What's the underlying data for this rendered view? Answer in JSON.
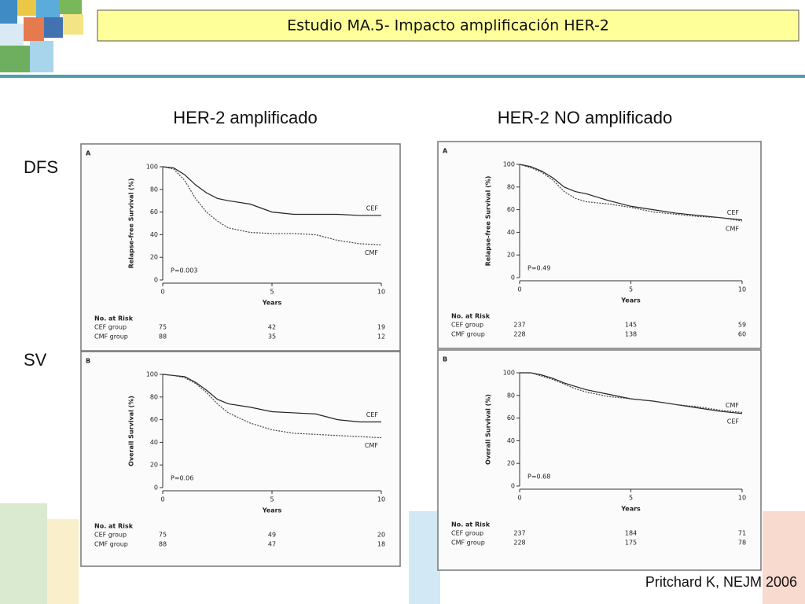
{
  "slide": {
    "title": "Estudio MA.5- Impacto amplificación HER-2",
    "columns": [
      "HER-2 amplificado",
      "HER-2 NO amplificado"
    ],
    "rows": [
      "DFS",
      "SV"
    ],
    "citation": "Pritchard K, NEJM 2006"
  },
  "chart_data": [
    {
      "type": "line",
      "panel": "A",
      "ylabel": "Relapse-free Survival (%)",
      "xlabel": "Years",
      "annotation": "P=0.003",
      "xlim": [
        0,
        10
      ],
      "ylim": [
        0,
        100
      ],
      "xticks": [
        0,
        5,
        10
      ],
      "yticks": [
        0,
        20,
        40,
        60,
        80,
        100
      ],
      "x": [
        0,
        0.5,
        1,
        1.5,
        2,
        2.5,
        3,
        4,
        5,
        6,
        7,
        8,
        9,
        10
      ],
      "series": [
        {
          "name": "CEF",
          "color": "#222222",
          "dashed": false,
          "values": [
            100,
            99,
            93,
            84,
            77,
            72,
            70,
            67,
            60,
            58,
            58,
            58,
            57,
            57
          ]
        },
        {
          "name": "CMF",
          "color": "#444444",
          "dashed": true,
          "values": [
            100,
            98,
            88,
            72,
            60,
            52,
            46,
            42,
            41,
            41,
            40,
            35,
            32,
            31
          ]
        }
      ],
      "risk_table": {
        "title": "No. at Risk",
        "rows": [
          {
            "label": "CEF group",
            "values": [
              75,
              42,
              19
            ]
          },
          {
            "label": "CMF group",
            "values": [
              88,
              35,
              12
            ]
          }
        ]
      }
    },
    {
      "type": "line",
      "panel": "A",
      "ylabel": "Relapse-free Survival (%)",
      "xlabel": "Years",
      "annotation": "P=0.49",
      "xlim": [
        0,
        10
      ],
      "ylim": [
        0,
        100
      ],
      "xticks": [
        0,
        5,
        10
      ],
      "yticks": [
        0,
        20,
        40,
        60,
        80,
        100
      ],
      "x": [
        0,
        0.5,
        1,
        1.5,
        2,
        2.5,
        3,
        4,
        5,
        6,
        7,
        8,
        9,
        10
      ],
      "series": [
        {
          "name": "CEF",
          "color": "#222222",
          "dashed": false,
          "values": [
            100,
            98,
            94,
            88,
            80,
            76,
            74,
            68,
            63,
            60,
            57,
            55,
            53,
            51
          ]
        },
        {
          "name": "CMF",
          "color": "#444444",
          "dashed": true,
          "values": [
            100,
            97,
            93,
            86,
            76,
            70,
            67,
            65,
            62,
            58,
            56,
            54,
            53,
            50
          ]
        }
      ],
      "risk_table": {
        "title": "No. at Risk",
        "rows": [
          {
            "label": "CEF group",
            "values": [
              237,
              145,
              59
            ]
          },
          {
            "label": "CMF group",
            "values": [
              228,
              138,
              60
            ]
          }
        ]
      }
    },
    {
      "type": "line",
      "panel": "B",
      "ylabel": "Overall Survival (%)",
      "xlabel": "Years",
      "annotation": "P=0.06",
      "xlim": [
        0,
        10
      ],
      "ylim": [
        0,
        100
      ],
      "xticks": [
        0,
        5,
        10
      ],
      "yticks": [
        0,
        20,
        40,
        60,
        80,
        100
      ],
      "x": [
        0,
        0.5,
        1,
        1.5,
        2,
        2.5,
        3,
        4,
        5,
        6,
        7,
        8,
        9,
        10
      ],
      "series": [
        {
          "name": "CEF",
          "color": "#222222",
          "dashed": false,
          "values": [
            100,
            99,
            98,
            93,
            86,
            78,
            74,
            71,
            67,
            66,
            65,
            60,
            58,
            58
          ]
        },
        {
          "name": "CMF",
          "color": "#444444",
          "dashed": true,
          "values": [
            100,
            99,
            97,
            92,
            84,
            74,
            66,
            57,
            51,
            48,
            47,
            46,
            45,
            44
          ]
        }
      ],
      "risk_table": {
        "title": "No. at Risk",
        "rows": [
          {
            "label": "CEF group",
            "values": [
              75,
              49,
              20
            ]
          },
          {
            "label": "CMF group",
            "values": [
              88,
              47,
              18
            ]
          }
        ]
      }
    },
    {
      "type": "line",
      "panel": "B",
      "ylabel": "Overall Survival (%)",
      "xlabel": "Years",
      "annotation": "P=0.68",
      "xlim": [
        0,
        10
      ],
      "ylim": [
        0,
        100
      ],
      "xticks": [
        0,
        5,
        10
      ],
      "yticks": [
        0,
        20,
        40,
        60,
        80,
        100
      ],
      "x": [
        0,
        0.5,
        1,
        1.5,
        2,
        2.5,
        3,
        4,
        5,
        6,
        7,
        8,
        9,
        10
      ],
      "series": [
        {
          "name": "CEF",
          "color": "#222222",
          "dashed": false,
          "values": [
            100,
            100,
            98,
            95,
            91,
            88,
            85,
            81,
            77,
            75,
            72,
            69,
            66,
            64
          ]
        },
        {
          "name": "CMF",
          "color": "#444444",
          "dashed": true,
          "values": [
            100,
            100,
            97,
            94,
            90,
            86,
            83,
            79,
            77,
            75,
            72,
            70,
            67,
            65
          ]
        }
      ],
      "risk_table": {
        "title": "No. at Risk",
        "rows": [
          {
            "label": "CEF group",
            "values": [
              237,
              184,
              71
            ]
          },
          {
            "label": "CMF group",
            "values": [
              228,
              175,
              78
            ]
          }
        ]
      }
    }
  ]
}
